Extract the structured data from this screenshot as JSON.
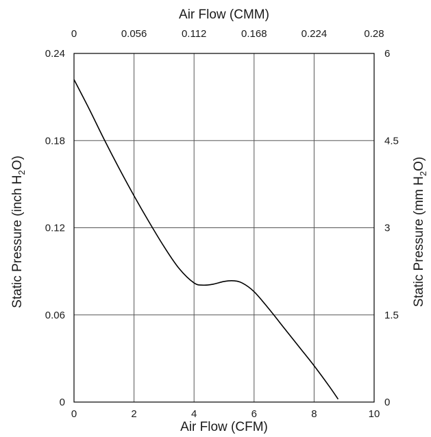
{
  "chart_data": {
    "type": "line",
    "title": "",
    "xlabel": "Air Flow (CFM)",
    "x2label": "Air Flow (CMM)",
    "ylabel": "Static Pressure (inch H2O)",
    "y2label": "Static Pressure (mm H2O)",
    "xlim": [
      0,
      10
    ],
    "ylim": [
      0,
      0.24
    ],
    "x_ticks": [
      "0",
      "2",
      "4",
      "6",
      "8",
      "10"
    ],
    "x2_ticks": [
      "0",
      "0.056",
      "0.112",
      "0.168",
      "0.224",
      "0.28"
    ],
    "y_ticks": [
      "0",
      "0.06",
      "0.12",
      "0.18",
      "0.24"
    ],
    "y2_ticks": [
      "0",
      "1.5",
      "3",
      "4.5",
      "6"
    ],
    "grid": true,
    "colors": {
      "line": "#000000",
      "grid": "#555555",
      "frame": "#000000"
    },
    "series": [
      {
        "x": [
          0,
          0.5,
          1.0,
          1.5,
          2.0,
          2.5,
          3.0,
          3.5,
          4.0,
          4.3,
          4.6,
          5.0,
          5.3,
          5.6,
          6.0,
          6.5,
          7.0,
          7.5,
          8.0,
          8.5,
          8.8
        ],
        "values": [
          0.222,
          0.202,
          0.181,
          0.161,
          0.142,
          0.124,
          0.107,
          0.092,
          0.082,
          0.0805,
          0.081,
          0.083,
          0.0835,
          0.082,
          0.076,
          0.064,
          0.051,
          0.038,
          0.025,
          0.011,
          0.002
        ]
      }
    ]
  }
}
